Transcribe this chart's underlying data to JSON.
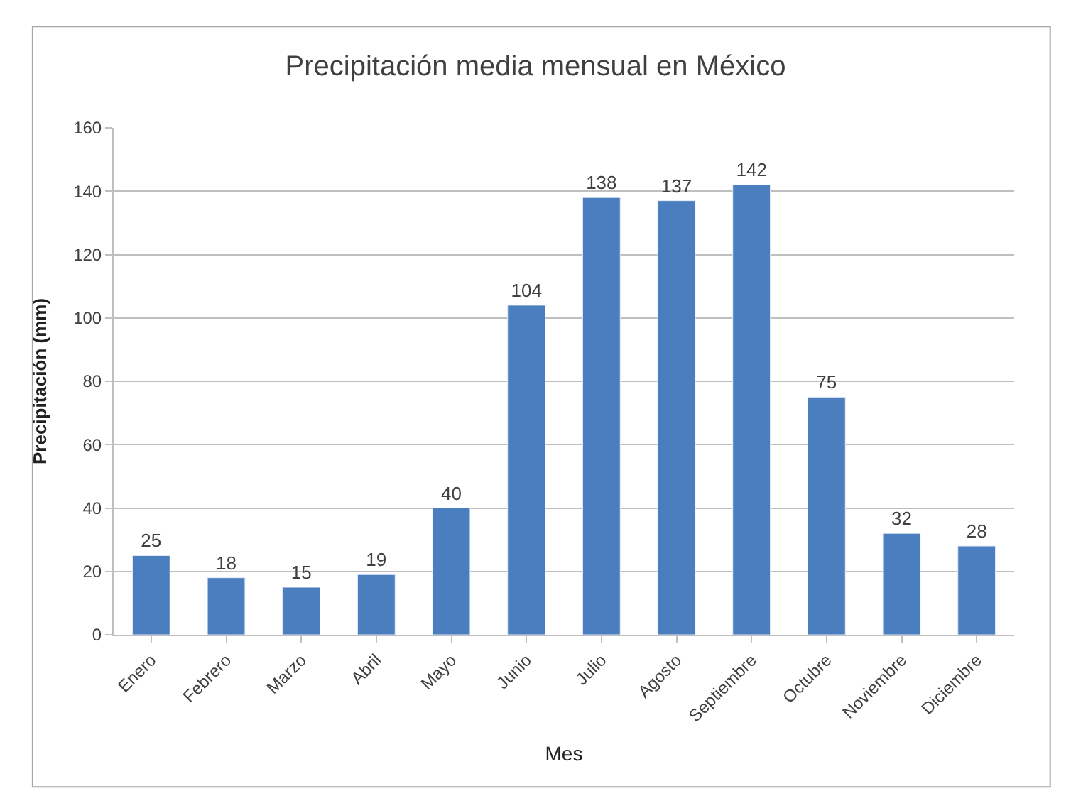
{
  "chart_data": {
    "type": "bar",
    "title": "Precipitación media mensual en México",
    "xlabel": "Mes",
    "ylabel": "Precipitación (mm)",
    "categories": [
      "Enero",
      "Febrero",
      "Marzo",
      "Abril",
      "Mayo",
      "Junio",
      "Julio",
      "Agosto",
      "Septiembre",
      "Octubre",
      "Noviembre",
      "Diciembre"
    ],
    "values": [
      25,
      18,
      15,
      19,
      40,
      104,
      138,
      137,
      142,
      75,
      32,
      28
    ],
    "color": "#4a7ebf",
    "ylim": [
      0,
      160
    ],
    "yticks": [
      0,
      20,
      40,
      60,
      80,
      100,
      120,
      140,
      160
    ],
    "grid": "y",
    "data_labels": true,
    "legend": false
  }
}
